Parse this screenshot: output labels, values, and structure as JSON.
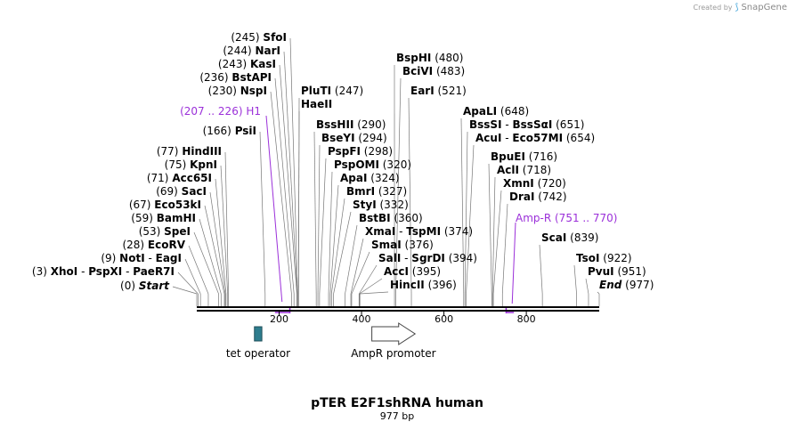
{
  "watermark": {
    "prefix": "Created by",
    "brand": "SnapGene"
  },
  "title": "pTER E2F1shRNA human",
  "size": "977 bp",
  "seq_length": 977,
  "ticks": [
    {
      "pos": 200,
      "label": "200"
    },
    {
      "pos": 400,
      "label": "400"
    },
    {
      "pos": 600,
      "label": "600"
    },
    {
      "pos": 800,
      "label": "800"
    }
  ],
  "features": [
    {
      "name": "tet operator",
      "start": 140,
      "end": 158,
      "type": "box",
      "color": "#2e7d8e"
    },
    {
      "name": "AmpR promoter",
      "start": 425,
      "end": 530,
      "type": "arrow",
      "color": "#ffffff"
    }
  ],
  "primers": [
    {
      "name": "H1",
      "range": "(207 .. 226)",
      "start": 207,
      "end": 226,
      "color": "#9b30d9"
    },
    {
      "name": "Amp-R",
      "range": "(751 .. 770)",
      "start": 751,
      "end": 770,
      "color": "#9b30d9"
    }
  ],
  "left_sites": [
    {
      "pos": 0,
      "paren": "(0)",
      "names": [
        "Start"
      ],
      "italic": true
    },
    {
      "pos": 3,
      "paren": "(3)",
      "names": [
        "XhoI",
        "PspXI",
        "PaeR7I"
      ]
    },
    {
      "pos": 9,
      "paren": "(9)",
      "names": [
        "NotI",
        "EagI"
      ]
    },
    {
      "pos": 28,
      "paren": "(28)",
      "names": [
        "EcoRV"
      ]
    },
    {
      "pos": 53,
      "paren": "(53)",
      "names": [
        "SpeI"
      ]
    },
    {
      "pos": 59,
      "paren": "(59)",
      "names": [
        "BamHI"
      ]
    },
    {
      "pos": 67,
      "paren": "(67)",
      "names": [
        "Eco53kI"
      ]
    },
    {
      "pos": 69,
      "paren": "(69)",
      "names": [
        "SacI"
      ]
    },
    {
      "pos": 71,
      "paren": "(71)",
      "names": [
        "Acc65I"
      ]
    },
    {
      "pos": 75,
      "paren": "(75)",
      "names": [
        "KpnI"
      ]
    },
    {
      "pos": 77,
      "paren": "(77)",
      "names": [
        "HindIII"
      ]
    },
    {
      "pos": 166,
      "paren": "(166)",
      "names": [
        "PsiI"
      ]
    },
    {
      "pos": 230,
      "paren": "(230)",
      "names": [
        "NspI"
      ]
    },
    {
      "pos": 236,
      "paren": "(236)",
      "names": [
        "BstAPI"
      ]
    },
    {
      "pos": 243,
      "paren": "(243)",
      "names": [
        "KasI"
      ]
    },
    {
      "pos": 244,
      "paren": "(244)",
      "names": [
        "NarI"
      ]
    },
    {
      "pos": 245,
      "paren": "(245)",
      "names": [
        "SfoI"
      ]
    }
  ],
  "right_sites": [
    {
      "pos": 247,
      "paren": "(247)",
      "names": [
        "PluTI"
      ]
    },
    {
      "pos": 247,
      "paren": "",
      "names": [
        "HaeII"
      ]
    },
    {
      "pos": 290,
      "paren": "(290)",
      "names": [
        "BssHII"
      ]
    },
    {
      "pos": 294,
      "paren": "(294)",
      "names": [
        "BseYI"
      ]
    },
    {
      "pos": 298,
      "paren": "(298)",
      "names": [
        "PspFI"
      ]
    },
    {
      "pos": 320,
      "paren": "(320)",
      "names": [
        "PspOMI"
      ]
    },
    {
      "pos": 324,
      "paren": "(324)",
      "names": [
        "ApaI"
      ]
    },
    {
      "pos": 327,
      "paren": "(327)",
      "names": [
        "BmrI"
      ]
    },
    {
      "pos": 332,
      "paren": "(332)",
      "names": [
        "StyI"
      ]
    },
    {
      "pos": 360,
      "paren": "(360)",
      "names": [
        "BstBI"
      ]
    },
    {
      "pos": 374,
      "paren": "(374)",
      "names": [
        "XmaI",
        "TspMI"
      ]
    },
    {
      "pos": 376,
      "paren": "(376)",
      "names": [
        "SmaI"
      ]
    },
    {
      "pos": 394,
      "paren": "(394)",
      "names": [
        "SalI",
        "SgrDI"
      ]
    },
    {
      "pos": 395,
      "paren": "(395)",
      "names": [
        "AccI"
      ]
    },
    {
      "pos": 396,
      "paren": "(396)",
      "names": [
        "HincII"
      ]
    },
    {
      "pos": 480,
      "paren": "(480)",
      "names": [
        "BspHI"
      ]
    },
    {
      "pos": 483,
      "paren": "(483)",
      "names": [
        "BciVI"
      ]
    },
    {
      "pos": 521,
      "paren": "(521)",
      "names": [
        "EarI"
      ]
    },
    {
      "pos": 648,
      "paren": "(648)",
      "names": [
        "ApaLI"
      ]
    },
    {
      "pos": 651,
      "paren": "(651)",
      "names": [
        "BssSI",
        "BssSαI"
      ]
    },
    {
      "pos": 654,
      "paren": "(654)",
      "names": [
        "AcuI",
        "Eco57MI"
      ]
    },
    {
      "pos": 716,
      "paren": "(716)",
      "names": [
        "BpuEI"
      ]
    },
    {
      "pos": 718,
      "paren": "(718)",
      "names": [
        "AclI"
      ]
    },
    {
      "pos": 720,
      "paren": "(720)",
      "names": [
        "XmnI"
      ]
    },
    {
      "pos": 742,
      "paren": "(742)",
      "names": [
        "DraI"
      ]
    },
    {
      "pos": 839,
      "paren": "(839)",
      "names": [
        "ScaI"
      ]
    },
    {
      "pos": 922,
      "paren": "(922)",
      "names": [
        "TsoI"
      ]
    },
    {
      "pos": 951,
      "paren": "(951)",
      "names": [
        "PvuI"
      ]
    },
    {
      "pos": 977,
      "paren": "(977)",
      "names": [
        "End"
      ],
      "italic": true
    }
  ]
}
